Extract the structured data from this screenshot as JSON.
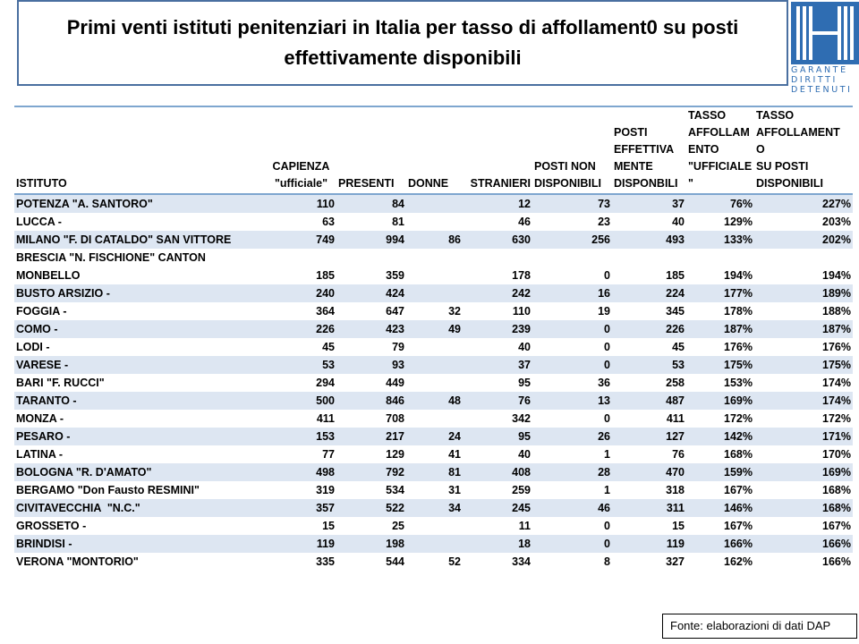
{
  "title": "Primi venti istituti penitenziari in Italia per tasso di affollament0 su posti effettivamente disponibili",
  "logo_lines": [
    "GARANTE",
    "DIRITTI",
    "DETENUTI"
  ],
  "colors": {
    "accent": "#4a6fa0",
    "band": "#dde6f2",
    "rule": "#7ea6cf",
    "logo": "#2f6db2"
  },
  "table": {
    "headers": [
      "ISTITUTO",
      "CAPIENZA\n\"ufficiale\"",
      "PRESENTI",
      "DONNE",
      "STRANIERI",
      "POSTI NON\nDISPONIBILI",
      "POSTI\nEFFETTIVA\nMENTE\nDISPONBILI",
      "TASSO\nAFFOLLAM\nENTO\n\"UFFICIALE\n\"",
      "TASSO\nAFFOLLAMENT\nO\nSU POSTI\nDISPONIBILI"
    ],
    "rows": [
      [
        "POTENZA \"A. SANTORO\"",
        "110",
        "84",
        "",
        "12",
        "73",
        "37",
        "76%",
        "227%"
      ],
      [
        "LUCCA -",
        "63",
        "81",
        "",
        "46",
        "23",
        "40",
        "129%",
        "203%"
      ],
      [
        "MILANO \"F. DI CATALDO\" SAN VITTORE",
        "749",
        "994",
        "86",
        "630",
        "256",
        "493",
        "133%",
        "202%"
      ],
      [
        "BRESCIA \"N. FISCHIONE\" CANTON\nMONBELLO",
        "185",
        "359",
        "",
        "178",
        "0",
        "185",
        "194%",
        "194%"
      ],
      [
        "BUSTO ARSIZIO -",
        "240",
        "424",
        "",
        "242",
        "16",
        "224",
        "177%",
        "189%"
      ],
      [
        "FOGGIA -",
        "364",
        "647",
        "32",
        "110",
        "19",
        "345",
        "178%",
        "188%"
      ],
      [
        "COMO -",
        "226",
        "423",
        "49",
        "239",
        "0",
        "226",
        "187%",
        "187%"
      ],
      [
        "LODI -",
        "45",
        "79",
        "",
        "40",
        "0",
        "45",
        "176%",
        "176%"
      ],
      [
        "VARESE -",
        "53",
        "93",
        "",
        "37",
        "0",
        "53",
        "175%",
        "175%"
      ],
      [
        "BARI \"F. RUCCI\"",
        "294",
        "449",
        "",
        "95",
        "36",
        "258",
        "153%",
        "174%"
      ],
      [
        "TARANTO -",
        "500",
        "846",
        "48",
        "76",
        "13",
        "487",
        "169%",
        "174%"
      ],
      [
        "MONZA -",
        "411",
        "708",
        "",
        "342",
        "0",
        "411",
        "172%",
        "172%"
      ],
      [
        "PESARO -",
        "153",
        "217",
        "24",
        "95",
        "26",
        "127",
        "142%",
        "171%"
      ],
      [
        "LATINA -",
        "77",
        "129",
        "41",
        "40",
        "1",
        "76",
        "168%",
        "170%"
      ],
      [
        "BOLOGNA \"R. D'AMATO\"",
        "498",
        "792",
        "81",
        "408",
        "28",
        "470",
        "159%",
        "169%"
      ],
      [
        "BERGAMO \"Don Fausto RESMINI\"",
        "319",
        "534",
        "31",
        "259",
        "1",
        "318",
        "167%",
        "168%"
      ],
      [
        "CIVITAVECCHIA  \"N.C.\"",
        "357",
        "522",
        "34",
        "245",
        "46",
        "311",
        "146%",
        "168%"
      ],
      [
        "GROSSETO -",
        "15",
        "25",
        "",
        "11",
        "0",
        "15",
        "167%",
        "167%"
      ],
      [
        "BRINDISI -",
        "119",
        "198",
        "",
        "18",
        "0",
        "119",
        "166%",
        "166%"
      ],
      [
        "VERONA \"MONTORIO\"",
        "335",
        "544",
        "52",
        "334",
        "8",
        "327",
        "162%",
        "166%"
      ]
    ]
  },
  "source": "Fonte: elaborazioni di dati DAP"
}
